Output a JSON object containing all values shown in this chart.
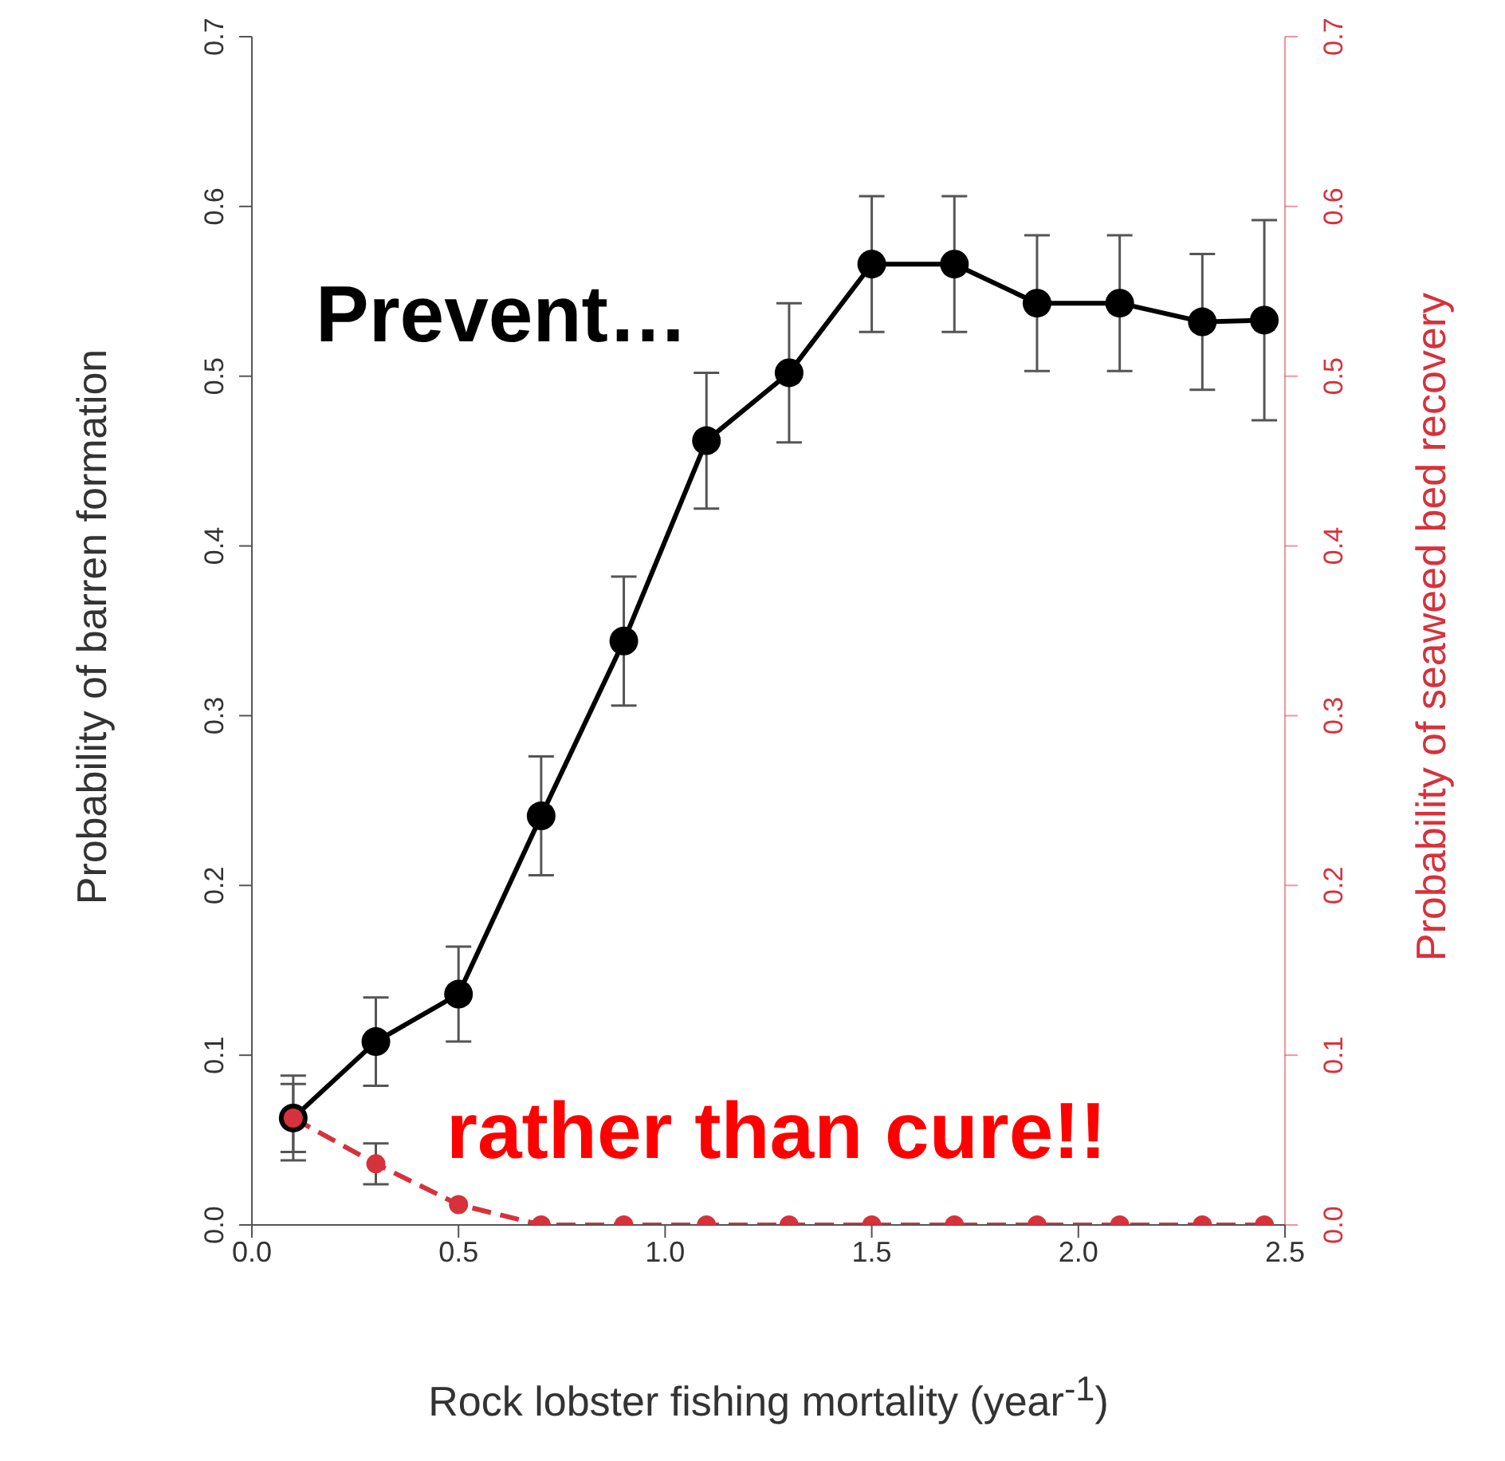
{
  "chart_data": {
    "type": "line",
    "xlabel": "Rock lobster fishing mortality (year$^{-1}$)",
    "ylabel": "Probability of barren formation",
    "y2label": "Probability of seaweed bed recovery",
    "annotations": [
      "Prevent…",
      "rather than cure!!"
    ],
    "x": [
      0.1,
      0.3,
      0.5,
      0.7,
      0.9,
      1.1,
      1.3,
      1.5,
      1.7,
      1.9,
      2.1,
      2.3,
      2.45
    ],
    "series": [
      {
        "color": "#000000",
        "line_style": "solid",
        "values": [
          0.063,
          0.108,
          0.136,
          0.241,
          0.344,
          0.462,
          0.502,
          0.566,
          0.566,
          0.543,
          0.543,
          0.532,
          0.533
        ],
        "errors": [
          0.025,
          0.026,
          0.028,
          0.035,
          0.038,
          0.04,
          0.041,
          0.04,
          0.04,
          0.04,
          0.04,
          0.04,
          0.059
        ]
      },
      {
        "color": "#d6323c",
        "axis": "y2",
        "line_style": "dashed",
        "values": [
          0.063,
          0.036,
          0.012,
          0,
          0,
          0,
          0,
          0,
          0,
          0,
          0,
          0,
          0
        ],
        "errors": [
          0.02,
          0.012,
          null,
          null,
          null,
          null,
          null,
          null,
          null,
          null,
          null,
          null,
          null
        ]
      }
    ],
    "xlim": [
      0,
      2.5
    ],
    "xticks": [
      {
        "value": 0,
        "label": "0.0"
      },
      0.5,
      {
        "value": 1,
        "label": "1.0"
      },
      1.5,
      {
        "value": 2,
        "label": "2.0"
      },
      2.5
    ],
    "ylim": [
      0,
      0.7
    ],
    "yticks": [
      {
        "value": 0,
        "label": "0.0"
      },
      0.1,
      0.2,
      0.3,
      0.4,
      0.5,
      0.6,
      0.7
    ],
    "y2lim": [
      0,
      0.7
    ],
    "y2ticks": [
      {
        "value": 0,
        "label": "0.0"
      },
      0.1,
      0.2,
      0.3,
      0.4,
      0.5,
      0.6,
      0.7
    ],
    "marker": "circle",
    "legend": false,
    "grid": false
  }
}
